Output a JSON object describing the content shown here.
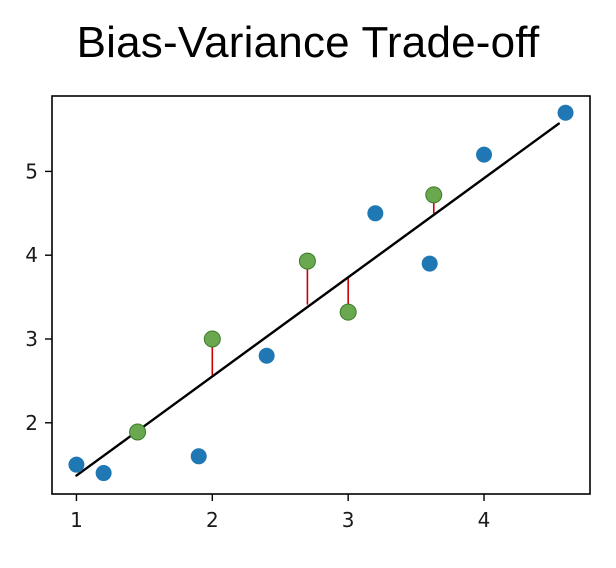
{
  "chart_data": {
    "type": "scatter",
    "title": "Bias-Variance Trade-off",
    "xlabel": "",
    "ylabel": "",
    "xlim": [
      0.82,
      4.78
    ],
    "ylim": [
      1.15,
      5.9
    ],
    "xticks": [
      1,
      2,
      3,
      4
    ],
    "yticks": [
      2,
      3,
      4,
      5
    ],
    "grid": false,
    "legend": "none",
    "colors": {
      "blue": "#1f77b4",
      "green": "#6aa84f",
      "green_edge": "#3f7a2a",
      "line": "#000000",
      "residual": "#cc0000"
    },
    "series": [
      {
        "kind": "points",
        "color": "blue",
        "x": [
          1.0,
          1.2,
          1.9,
          2.4,
          3.2,
          3.6,
          4.0,
          4.6
        ],
        "y": [
          1.5,
          1.4,
          1.6,
          2.8,
          4.5,
          3.9,
          5.2,
          5.7
        ]
      },
      {
        "kind": "points",
        "color": "green",
        "x": [
          1.45,
          2.0,
          2.7,
          3.0,
          3.63
        ],
        "y": [
          1.89,
          3.0,
          3.93,
          3.32,
          4.72
        ]
      },
      {
        "kind": "line",
        "color": "line",
        "x": [
          1.0,
          4.55
        ],
        "y": [
          1.37,
          5.57
        ]
      }
    ],
    "residuals": {
      "color": "residual",
      "x": [
        1.45,
        2.0,
        2.7,
        3.0,
        3.63
      ],
      "y_point": [
        1.89,
        3.0,
        3.93,
        3.32,
        4.72
      ],
      "y_line": [
        1.89,
        2.55,
        3.41,
        3.75,
        4.5
      ]
    }
  }
}
